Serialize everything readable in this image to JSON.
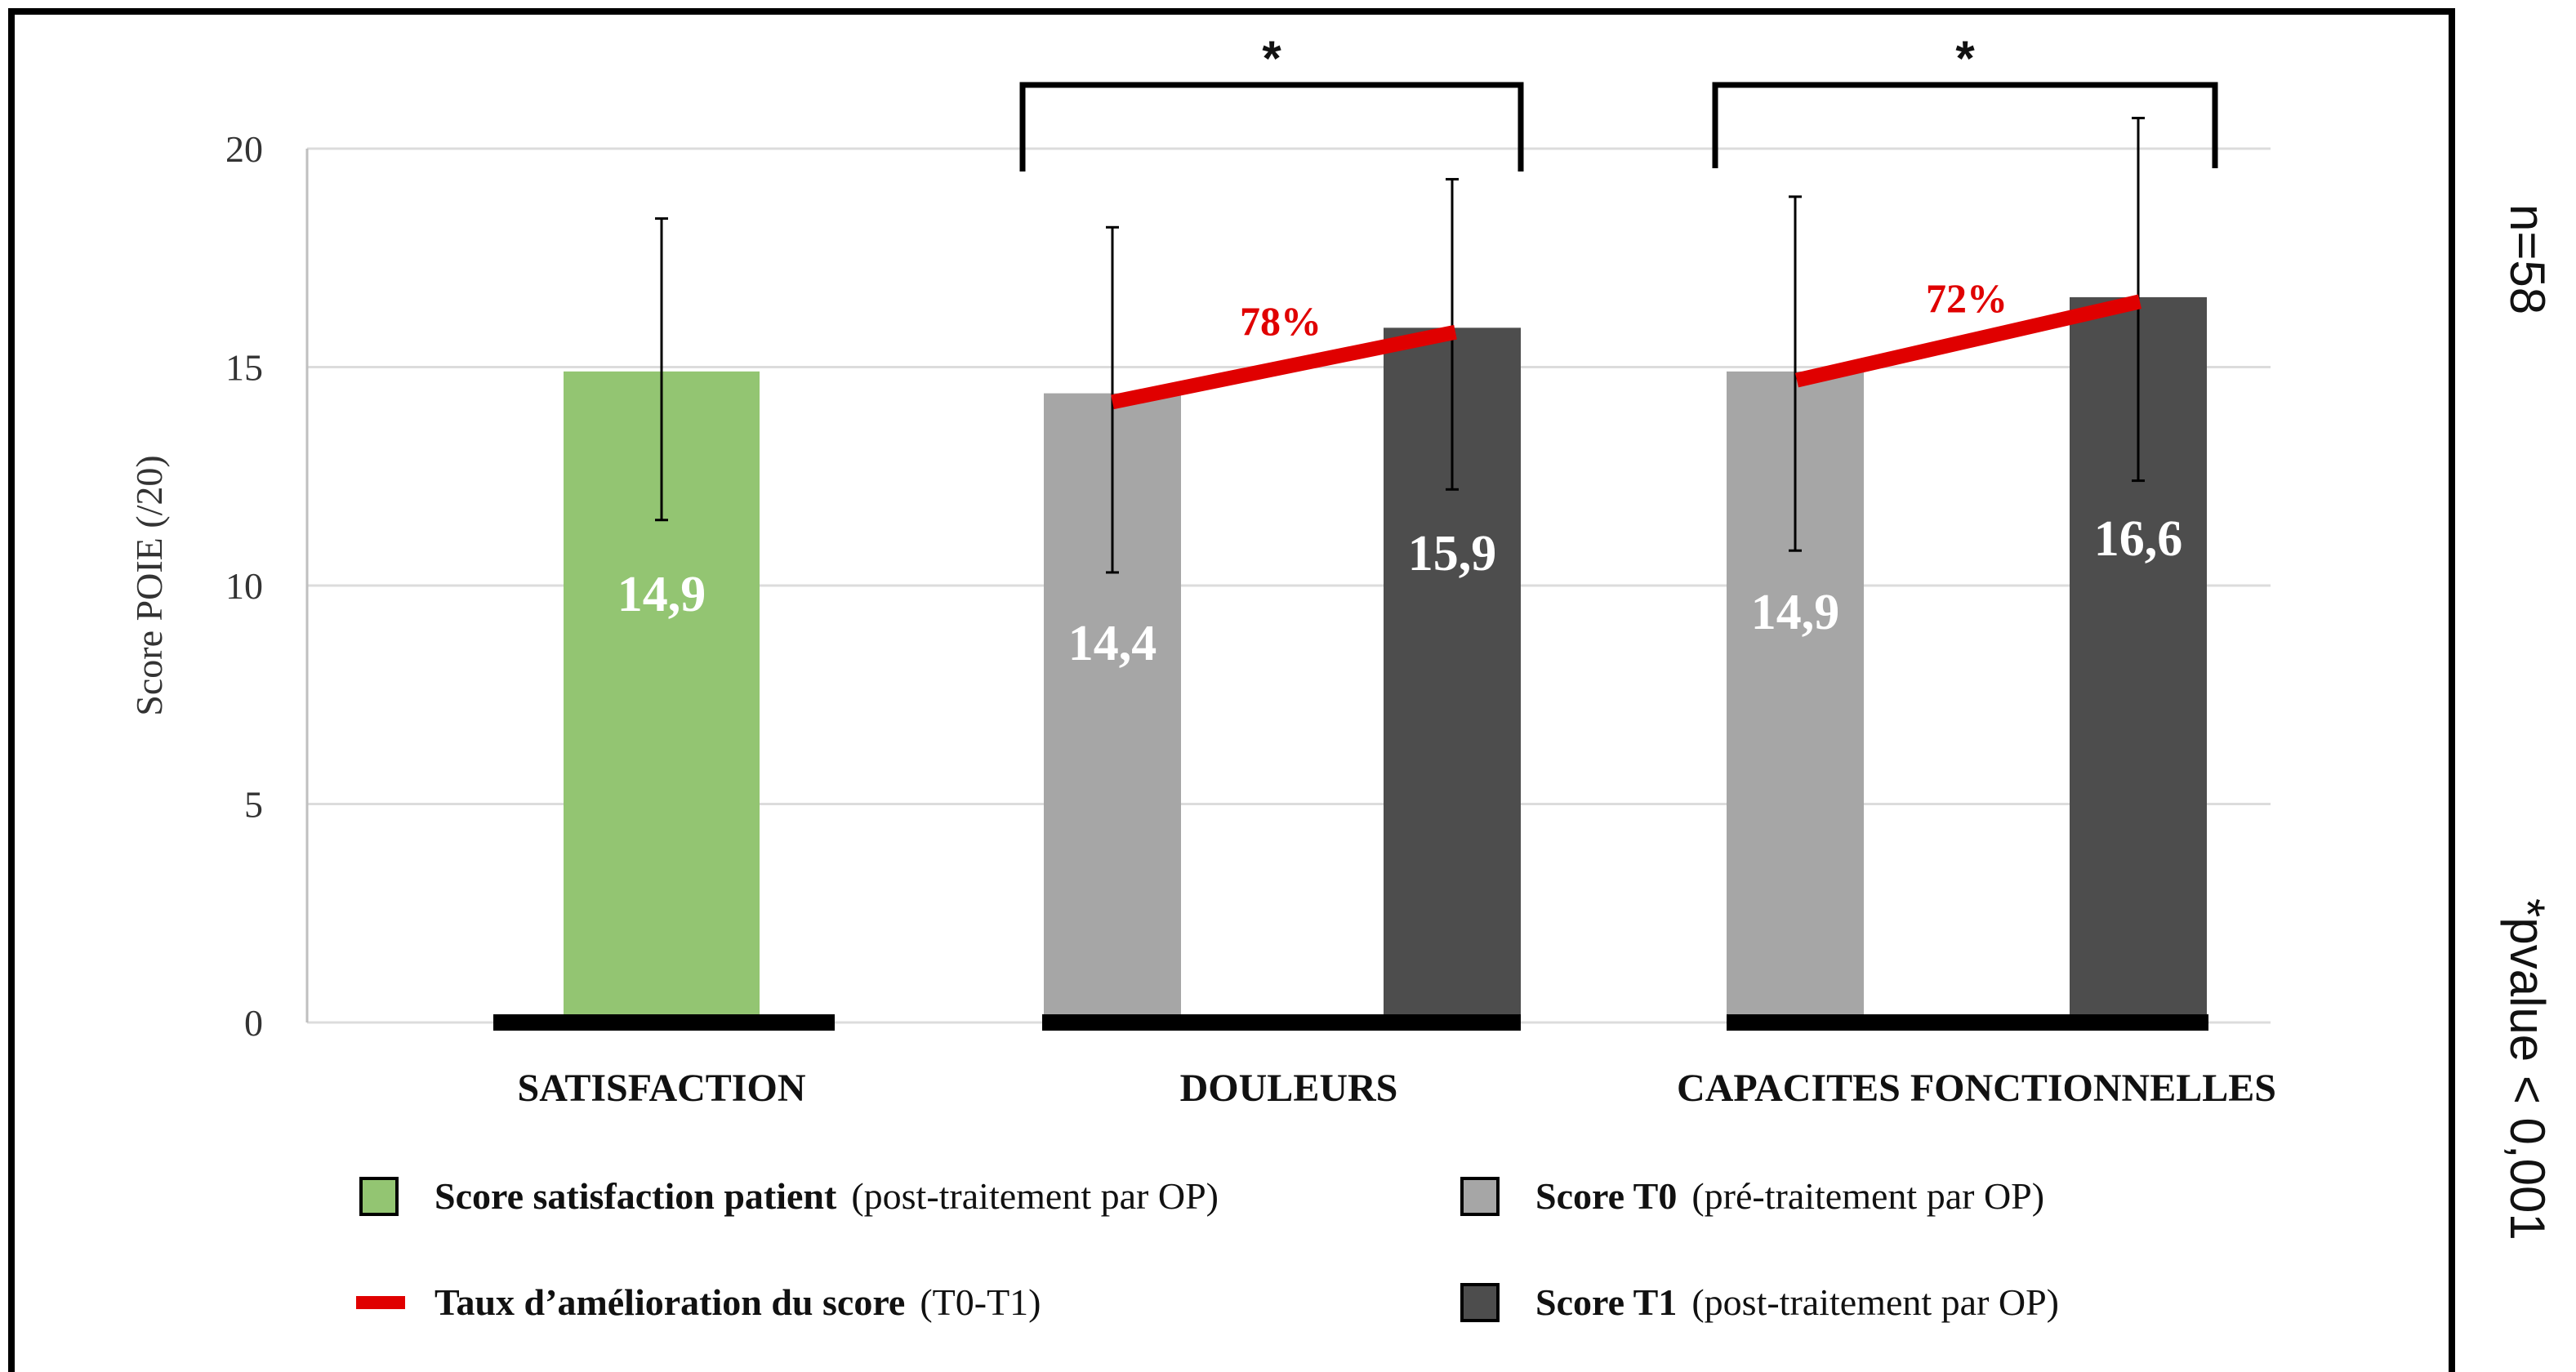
{
  "chart_data": {
    "type": "bar",
    "ylabel": "Score POIE (/20)",
    "ylim": [
      0,
      20
    ],
    "yticks": [
      "0",
      "5",
      "10",
      "15",
      "20"
    ],
    "categories": [
      "SATISFACTION",
      "DOULEURS",
      "CAPACITES FONCTIONNELLES"
    ],
    "series": [
      {
        "name": "Score satisfaction patient",
        "color": "#93c572",
        "values": [
          14.9,
          null,
          null
        ],
        "labels": [
          "14,9",
          "",
          ""
        ],
        "err_low": [
          11.5,
          null,
          null
        ],
        "err_high": [
          18.4,
          null,
          null
        ]
      },
      {
        "name": "Score T0",
        "color": "#a6a6a6",
        "values": [
          null,
          14.4,
          14.9
        ],
        "labels": [
          "",
          "14,4",
          "14,9"
        ],
        "err_low": [
          null,
          10.3,
          10.8
        ],
        "err_high": [
          null,
          18.2,
          18.9
        ]
      },
      {
        "name": "Score T1",
        "color": "#4d4d4d",
        "values": [
          null,
          15.9,
          16.6
        ],
        "labels": [
          "",
          "15,9",
          "16,6"
        ],
        "err_low": [
          null,
          12.2,
          12.4
        ],
        "err_high": [
          null,
          19.3,
          20.7
        ]
      }
    ],
    "improvement": [
      {
        "category": "DOULEURS",
        "from": 14.2,
        "to": 15.8,
        "label": "78%"
      },
      {
        "category": "CAPACITES FONCTIONNELLES",
        "from": 14.7,
        "to": 16.5,
        "label": "72%"
      }
    ],
    "significance": [
      {
        "category": "DOULEURS",
        "label": "*"
      },
      {
        "category": "CAPACITES FONCTIONNELLES",
        "label": "*"
      }
    ],
    "grid": true
  },
  "legend": {
    "satisfaction": {
      "bold": "Score satisfaction patient",
      "rest": "(post-traitement par OP)",
      "color": "#93c572"
    },
    "t0": {
      "bold": "Score T0",
      "rest": "(pré-traitement par OP)",
      "color": "#a6a6a6"
    },
    "rate": {
      "bold": "Taux d’amélioration du score",
      "rest": "(T0-T1)",
      "color": "#e00000"
    },
    "t1": {
      "bold": "Score T1",
      "rest": "(post-traitement par OP)",
      "color": "#4d4d4d"
    }
  },
  "side_notes": {
    "n": "n=58",
    "pvalue": "*pvalue < 0,001"
  }
}
